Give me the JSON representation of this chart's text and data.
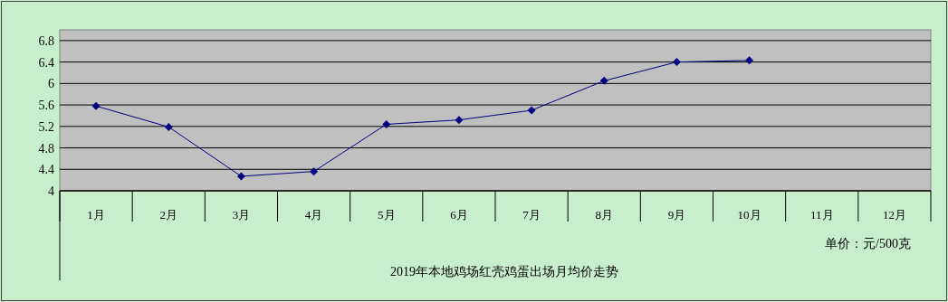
{
  "chart_data": {
    "type": "line",
    "xlabel": "2019年本地鸡场红壳鸡蛋出场月均价走势",
    "annotations": [
      "单价：元/500克"
    ],
    "categories": [
      "1月",
      "2月",
      "3月",
      "4月",
      "5月",
      "6月",
      "7月",
      "8月",
      "9月",
      "10月",
      "11月",
      "12月"
    ],
    "series": [
      {
        "color": "#000080",
        "values": [
          5.58,
          5.19,
          4.27,
          4.36,
          5.24,
          5.32,
          5.5,
          6.05,
          6.4,
          6.43,
          null,
          null
        ]
      }
    ],
    "ylim": [
      4,
      7
    ],
    "yticks": [
      4,
      4.4,
      4.8,
      5.2,
      5.6,
      6,
      6.4,
      6.8
    ],
    "grid": "y",
    "marker": "diamond",
    "line_style": "solid"
  }
}
